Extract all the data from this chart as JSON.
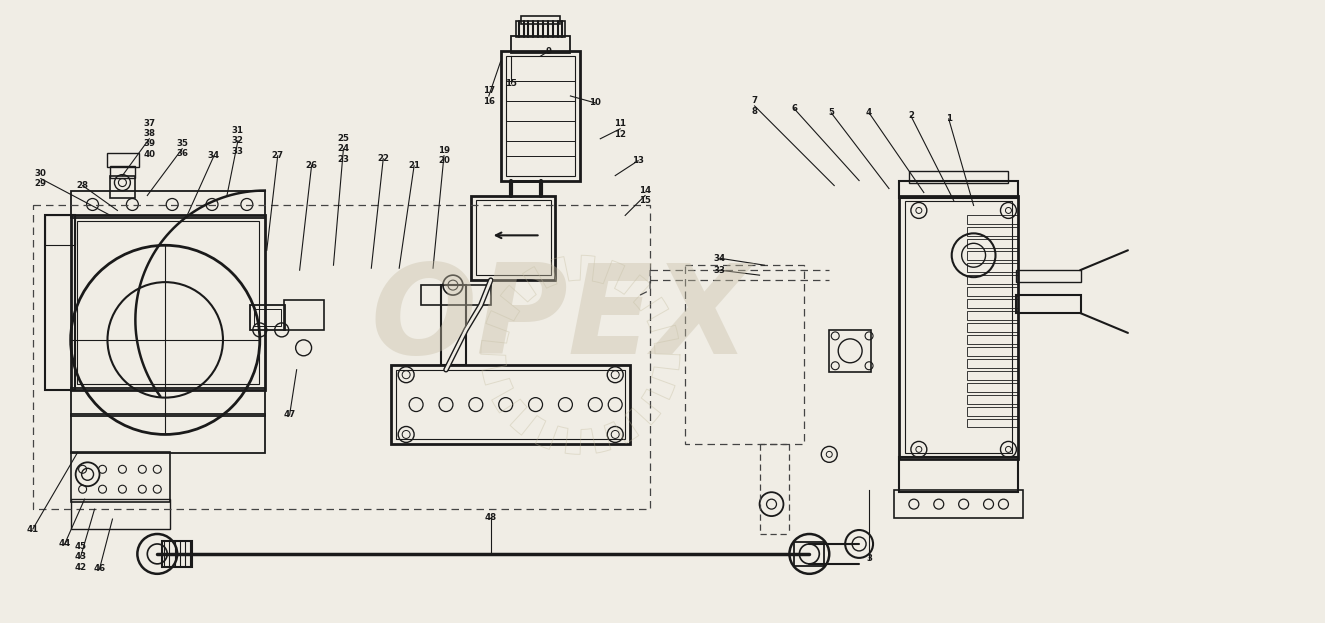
{
  "bg": "#f0ede5",
  "lc": "#1a1a1a",
  "tc": "#1a1a1a",
  "wm": "#c8bfa8",
  "fig_w": 13.25,
  "fig_h": 6.23,
  "dpi": 100
}
